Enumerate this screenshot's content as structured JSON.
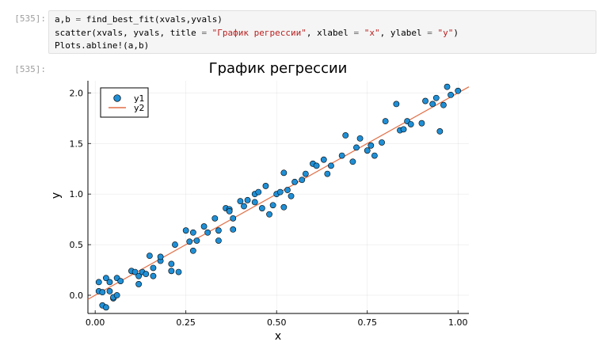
{
  "input_prompt": "[535]:",
  "output_prompt": "[535]:",
  "code": {
    "line1": {
      "a": "a,b ",
      "eq": "=",
      "b": " find_best_fit(xvals,yvals)"
    },
    "line2": {
      "a": "scatter(xvals, yvals, title ",
      "eq1": "=",
      "s1": " \"График регрессии\"",
      "b": ", xlabel ",
      "eq2": "=",
      "s2": " \"x\"",
      "c": ", ylabel ",
      "eq3": "=",
      "s3": " \"y\"",
      "d": ")"
    },
    "line3": "Plots.abline!(a,b)"
  },
  "colors": {
    "scatter": "#1f8fd6",
    "line": "#e26f46",
    "prompt": "#9e9e9e",
    "string": "#ba2121"
  },
  "chart_data": {
    "type": "scatter",
    "title": "График регрессии",
    "xlabel": "x",
    "ylabel": "y",
    "xlim": [
      -0.02,
      1.03
    ],
    "ylim": [
      -0.18,
      2.12
    ],
    "xticks": [
      0.0,
      0.25,
      0.5,
      0.75,
      1.0
    ],
    "xtick_labels": [
      "0.00",
      "0.25",
      "0.50",
      "0.75",
      "1.00"
    ],
    "yticks": [
      0.0,
      0.5,
      1.0,
      1.5,
      2.0
    ],
    "ytick_labels": [
      "0.0",
      "0.5",
      "1.0",
      "1.5",
      "2.0"
    ],
    "grid": true,
    "legend_position": "top-left",
    "series": [
      {
        "name": "y1",
        "kind": "scatter",
        "x": [
          0.01,
          0.01,
          0.02,
          0.02,
          0.03,
          0.03,
          0.04,
          0.04,
          0.05,
          0.05,
          0.06,
          0.06,
          0.07,
          0.1,
          0.11,
          0.12,
          0.12,
          0.13,
          0.14,
          0.15,
          0.16,
          0.16,
          0.18,
          0.18,
          0.21,
          0.21,
          0.22,
          0.23,
          0.25,
          0.26,
          0.27,
          0.27,
          0.28,
          0.3,
          0.31,
          0.33,
          0.34,
          0.34,
          0.36,
          0.37,
          0.37,
          0.38,
          0.38,
          0.4,
          0.41,
          0.42,
          0.44,
          0.44,
          0.45,
          0.46,
          0.47,
          0.48,
          0.49,
          0.5,
          0.51,
          0.52,
          0.52,
          0.53,
          0.54,
          0.55,
          0.57,
          0.58,
          0.6,
          0.61,
          0.63,
          0.64,
          0.65,
          0.68,
          0.69,
          0.71,
          0.72,
          0.73,
          0.75,
          0.76,
          0.77,
          0.79,
          0.8,
          0.83,
          0.84,
          0.85,
          0.86,
          0.87,
          0.9,
          0.91,
          0.93,
          0.94,
          0.95,
          0.96,
          0.97,
          0.98,
          1.0
        ],
        "y": [
          0.13,
          0.04,
          -0.1,
          0.03,
          0.17,
          -0.12,
          0.13,
          0.04,
          -0.03,
          -0.02,
          0.17,
          0.0,
          0.14,
          0.24,
          0.23,
          0.11,
          0.19,
          0.23,
          0.21,
          0.39,
          0.27,
          0.19,
          0.34,
          0.38,
          0.24,
          0.31,
          0.5,
          0.23,
          0.64,
          0.53,
          0.62,
          0.44,
          0.54,
          0.68,
          0.62,
          0.76,
          0.54,
          0.64,
          0.86,
          0.85,
          0.83,
          0.76,
          0.65,
          0.93,
          0.88,
          0.94,
          1.0,
          0.92,
          1.02,
          0.86,
          1.08,
          0.8,
          0.89,
          1.0,
          1.02,
          1.21,
          0.87,
          1.04,
          0.98,
          1.12,
          1.14,
          1.2,
          1.3,
          1.28,
          1.34,
          1.2,
          1.28,
          1.38,
          1.58,
          1.32,
          1.46,
          1.55,
          1.43,
          1.48,
          1.38,
          1.51,
          1.72,
          1.89,
          1.63,
          1.64,
          1.72,
          1.69,
          1.7,
          1.92,
          1.89,
          1.95,
          1.62,
          1.88,
          2.06,
          1.98,
          2.02
        ]
      },
      {
        "name": "y2",
        "kind": "line",
        "intercept": 0.0,
        "slope": 2.0
      }
    ]
  }
}
